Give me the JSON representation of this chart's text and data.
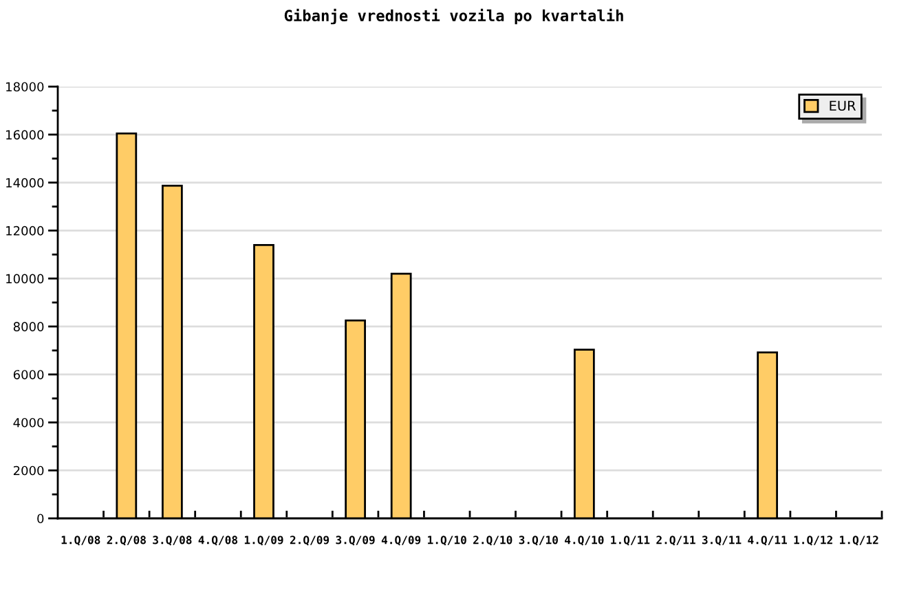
{
  "chart_data": {
    "type": "bar",
    "title": "Gibanje vrednosti vozila po kvartalih",
    "categories": [
      "1.Q/08",
      "2.Q/08",
      "3.Q/08",
      "4.Q/08",
      "1.Q/09",
      "2.Q/09",
      "3.Q/09",
      "4.Q/09",
      "1.Q/10",
      "2.Q/10",
      "3.Q/10",
      "4.Q/10",
      "1.Q/11",
      "2.Q/11",
      "3.Q/11",
      "4.Q/11",
      "1.Q/12",
      "1.Q/12"
    ],
    "series": [
      {
        "name": "EUR",
        "color": "#ffcc66",
        "values": [
          null,
          16050,
          13870,
          null,
          11400,
          null,
          8250,
          10200,
          null,
          null,
          null,
          7030,
          null,
          null,
          null,
          6920,
          null,
          null
        ]
      }
    ],
    "ylim": [
      0,
      18000
    ],
    "yticks": [
      0,
      {
        "value": 1000,
        "label": null
      },
      2000,
      {
        "value": 3000,
        "label": null
      },
      4000,
      {
        "value": 5000,
        "label": null
      },
      6000,
      {
        "value": 7000,
        "label": null
      },
      8000,
      {
        "value": 9000,
        "label": null
      },
      10000,
      {
        "value": 11000,
        "label": null
      },
      12000,
      {
        "value": 13000,
        "label": null
      },
      14000,
      {
        "value": 15000,
        "label": null
      },
      16000,
      {
        "value": 17000,
        "label": null
      },
      18000
    ],
    "grid": "y",
    "legend": "top right"
  }
}
